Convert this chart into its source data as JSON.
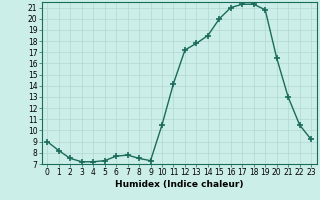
{
  "x": [
    0,
    1,
    2,
    3,
    4,
    5,
    6,
    7,
    8,
    9,
    10,
    11,
    12,
    13,
    14,
    15,
    16,
    17,
    18,
    19,
    20,
    21,
    22,
    23
  ],
  "y": [
    9,
    8.2,
    7.5,
    7.2,
    7.2,
    7.3,
    7.7,
    7.8,
    7.5,
    7.3,
    10.5,
    14.2,
    17.2,
    17.8,
    18.5,
    20.0,
    21.0,
    21.3,
    21.3,
    20.8,
    16.5,
    13.0,
    10.5,
    9.2
  ],
  "line_color": "#1a6b5a",
  "marker": "+",
  "marker_size": 4,
  "marker_lw": 1.2,
  "bg_color": "#cceee8",
  "grid_color": "#b0d8d0",
  "xlabel": "Humidex (Indice chaleur)",
  "ylim": [
    7,
    21.5
  ],
  "xlim": [
    -0.5,
    23.5
  ],
  "yticks": [
    7,
    8,
    9,
    10,
    11,
    12,
    13,
    14,
    15,
    16,
    17,
    18,
    19,
    20,
    21
  ],
  "xticks": [
    0,
    1,
    2,
    3,
    4,
    5,
    6,
    7,
    8,
    9,
    10,
    11,
    12,
    13,
    14,
    15,
    16,
    17,
    18,
    19,
    20,
    21,
    22,
    23
  ],
  "tick_label_size": 5.5,
  "xlabel_size": 6.5,
  "line_width": 1.0
}
